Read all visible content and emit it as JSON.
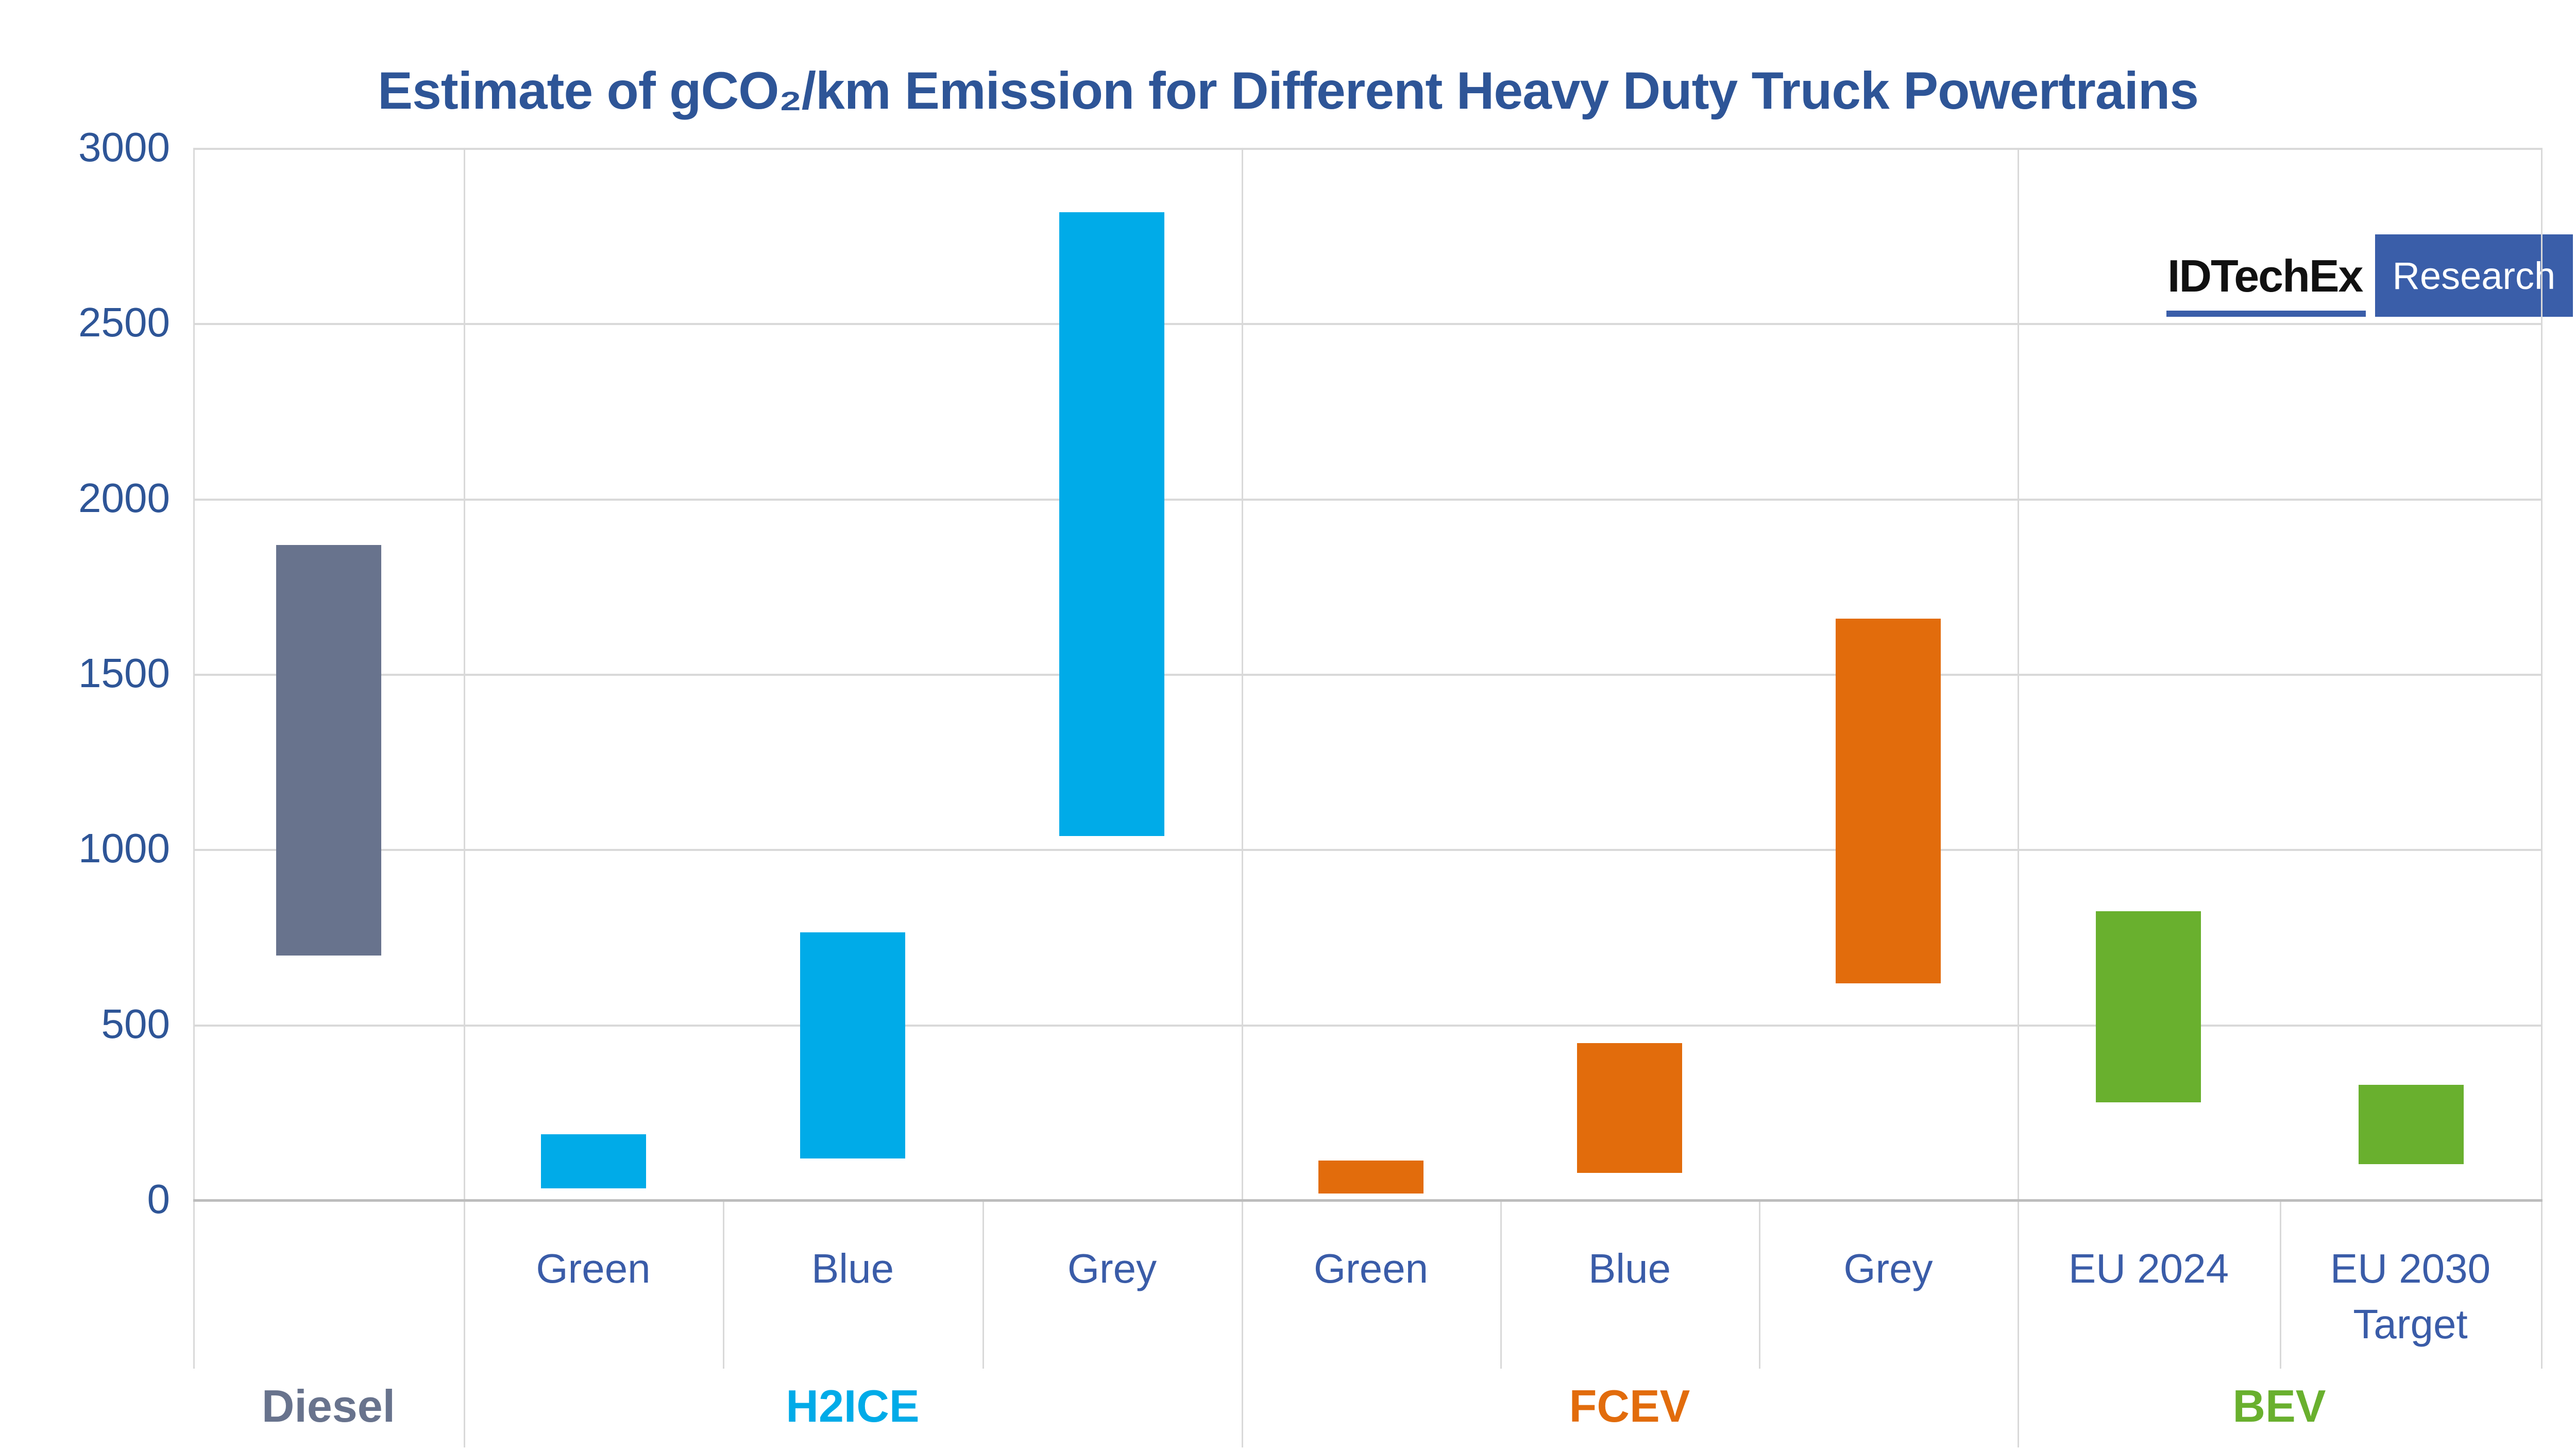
{
  "title": "Estimate of gCO₂/km Emission for Different Heavy Duty Truck Powertrains",
  "logo": {
    "brand": "IDTechEx",
    "suffix": "Research"
  },
  "y_axis": {
    "ticks": [
      "3000",
      "2500",
      "2000",
      "1500",
      "1000",
      "500",
      "0"
    ]
  },
  "colors": {
    "title_text": "#2E5597",
    "tick_text": "#2E5597",
    "category_text": "#3A5CA8",
    "gridline": "#D9D9D9",
    "axis_line": "#BDBDBD",
    "diesel": "#68738D",
    "h2ice": "#00ABE8",
    "fcev": "#E26C0C",
    "bev": "#69B02E",
    "logo_blue": "#3A5EA9"
  },
  "chart_data": {
    "type": "bar",
    "subtype": "floating-range-columns",
    "title": "Estimate of gCO₂/km Emission for Different Heavy Duty Truck Powertrains",
    "xlabel": "",
    "ylabel": "gCO₂/km",
    "ylim": [
      0,
      3000
    ],
    "gridlines": [
      500,
      1000,
      1500,
      2000,
      2500,
      3000
    ],
    "grid": "on",
    "legend": "none",
    "groups": [
      {
        "label": "Diesel",
        "color": "#68738D",
        "categories": [
          {
            "label": "",
            "range": [
              700,
              1870
            ]
          }
        ]
      },
      {
        "label": "H2ICE",
        "color": "#00ABE8",
        "categories": [
          {
            "label": "Green",
            "range": [
              35,
              190
            ]
          },
          {
            "label": "Blue",
            "range": [
              120,
              765
            ]
          },
          {
            "label": "Grey",
            "range": [
              1040,
              2820
            ]
          }
        ]
      },
      {
        "label": "FCEV",
        "color": "#E26C0C",
        "categories": [
          {
            "label": "Green",
            "range": [
              20,
              115
            ]
          },
          {
            "label": "Blue",
            "range": [
              80,
              450
            ]
          },
          {
            "label": "Grey",
            "range": [
              620,
              1660
            ]
          }
        ]
      },
      {
        "label": "BEV",
        "color": "#69B02E",
        "categories": [
          {
            "label": "EU 2024",
            "range": [
              280,
              825
            ]
          },
          {
            "label": "EU 2030 Target",
            "range": [
              105,
              330
            ]
          }
        ]
      }
    ]
  }
}
